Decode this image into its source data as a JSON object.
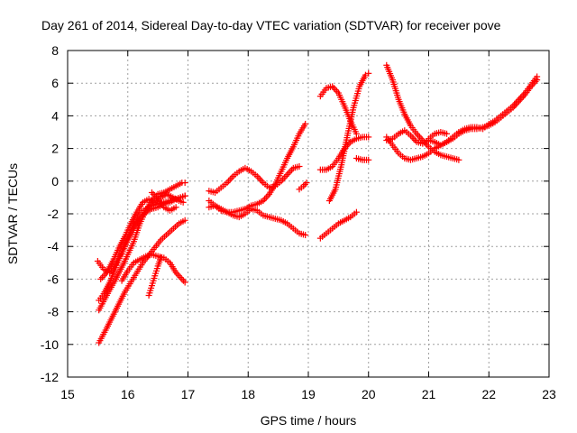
{
  "chart_data": {
    "type": "scatter",
    "title": "Day 261 of 2014, Sidereal Day-to-day VTEC variation (SDTVAR) for receiver pove",
    "xlabel": "GPS time / hours",
    "ylabel": "SDTVAR / TECUs",
    "xlim": [
      15,
      23
    ],
    "ylim": [
      -12,
      8
    ],
    "xticks": [
      "15",
      "16",
      "17",
      "18",
      "19",
      "20",
      "21",
      "22",
      "23"
    ],
    "yticks": [
      "8",
      "6",
      "4",
      "2",
      "0",
      "-2",
      "-4",
      "-6",
      "-8",
      "-10",
      "-12"
    ],
    "grid": true,
    "marker": "+",
    "color": "#ff0000",
    "tracks": [
      {
        "x": [
          15.52,
          15.65,
          15.8,
          15.95,
          16.1,
          16.25,
          16.4,
          16.55,
          16.7,
          16.85,
          16.95
        ],
        "y": [
          -9.9,
          -9.0,
          -7.9,
          -6.8,
          -5.9,
          -5.0,
          -4.3,
          -3.6,
          -3.1,
          -2.6,
          -2.4
        ]
      },
      {
        "x": [
          15.52,
          15.65,
          15.8,
          15.95,
          16.1,
          16.2,
          16.3,
          16.4,
          16.5,
          16.6,
          16.7,
          16.8,
          16.9,
          16.95
        ],
        "y": [
          -7.9,
          -7.0,
          -6.0,
          -4.9,
          -3.7,
          -2.6,
          -1.8,
          -1.2,
          -0.8,
          -0.7,
          -0.5,
          -0.3,
          -0.1,
          -0.1
        ]
      },
      {
        "x": [
          15.52,
          15.6,
          15.7,
          15.8,
          15.9,
          16.0,
          16.1,
          16.2,
          16.3,
          16.4,
          16.5,
          16.6,
          16.7,
          16.8,
          16.95
        ],
        "y": [
          -7.3,
          -6.9,
          -6.2,
          -5.3,
          -4.3,
          -3.4,
          -2.6,
          -2.0,
          -1.7,
          -1.5,
          -1.4,
          -1.3,
          -1.2,
          -1.1,
          -0.9
        ]
      },
      {
        "x": [
          15.5,
          15.6,
          15.7,
          15.8,
          15.9,
          16.0,
          16.1,
          16.2,
          16.3,
          16.4,
          16.5,
          16.6,
          16.7,
          16.8,
          16.95
        ],
        "y": [
          -4.9,
          -5.4,
          -5.6,
          -5.1,
          -4.4,
          -3.6,
          -2.9,
          -2.3,
          -1.9,
          -1.7,
          -1.6,
          -1.4,
          -1.3,
          -1.1,
          -0.9
        ]
      },
      {
        "x": [
          15.55,
          15.65,
          15.75,
          15.85,
          15.95,
          16.05,
          16.15,
          16.25,
          16.35,
          16.45,
          16.55,
          16.65,
          16.75,
          16.85,
          16.92
        ],
        "y": [
          -6.0,
          -5.6,
          -4.9,
          -4.1,
          -3.4,
          -2.6,
          -1.9,
          -1.3,
          -1.1,
          -1.3,
          -1.0,
          -0.8,
          -1.0,
          -1.2,
          -1.3
        ]
      },
      {
        "x": [
          16.4,
          16.5,
          16.6,
          16.7,
          16.8
        ],
        "y": [
          -0.7,
          -1.1,
          -1.6,
          -1.8,
          -1.6
        ]
      },
      {
        "x": [
          15.9,
          16.0,
          16.1,
          16.2,
          16.3,
          16.4,
          16.5,
          16.6,
          16.7,
          16.8,
          16.9,
          16.95
        ],
        "y": [
          -6.1,
          -5.5,
          -5.0,
          -4.8,
          -4.6,
          -4.5,
          -4.6,
          -4.7,
          -5.0,
          -5.6,
          -6.0,
          -6.2
        ]
      },
      {
        "x": [
          16.35,
          16.4,
          16.45,
          16.5,
          16.55
        ],
        "y": [
          -7.0,
          -6.4,
          -5.8,
          -5.2,
          -4.7
        ]
      },
      {
        "x": [
          17.35,
          17.45,
          17.55,
          17.65,
          17.75,
          17.85,
          17.95,
          18.05,
          18.15,
          18.25,
          18.35,
          18.45,
          18.55,
          18.65,
          18.75,
          18.85,
          18.95
        ],
        "y": [
          -1.6,
          -1.5,
          -1.7,
          -1.9,
          -2.1,
          -2.2,
          -2.0,
          -1.7,
          -1.8,
          -2.1,
          -2.2,
          -2.3,
          -2.4,
          -2.6,
          -2.9,
          -3.2,
          -3.3
        ]
      },
      {
        "x": [
          17.35,
          17.45,
          17.55,
          17.65,
          17.75,
          17.85,
          17.95,
          18.05,
          18.15,
          18.25,
          18.35,
          18.45,
          18.55,
          18.65,
          18.75,
          18.85
        ],
        "y": [
          -0.6,
          -0.7,
          -0.4,
          -0.1,
          0.3,
          0.6,
          0.8,
          0.6,
          0.3,
          -0.1,
          -0.4,
          -0.3,
          0.0,
          0.4,
          0.8,
          0.9
        ]
      },
      {
        "x": [
          17.35,
          17.45,
          17.55,
          17.65,
          17.75,
          17.85,
          17.95,
          18.05,
          18.15,
          18.25,
          18.35,
          18.45,
          18.55,
          18.65,
          18.75,
          18.85,
          18.95
        ],
        "y": [
          -1.2,
          -1.5,
          -1.8,
          -1.9,
          -1.9,
          -1.8,
          -1.7,
          -1.5,
          -1.4,
          -1.2,
          -0.8,
          -0.2,
          0.6,
          1.4,
          2.1,
          2.9,
          3.5
        ]
      },
      {
        "x": [
          18.85,
          18.92,
          18.97
        ],
        "y": [
          -0.5,
          -0.3,
          -0.1
        ]
      },
      {
        "x": [
          19.2,
          19.3,
          19.4,
          19.5,
          19.6,
          19.7,
          19.8,
          19.9,
          20.0
        ],
        "y": [
          0.7,
          0.7,
          0.9,
          1.4,
          2.0,
          2.4,
          2.6,
          2.7,
          2.7
        ]
      },
      {
        "x": [
          19.2,
          19.3,
          19.4,
          19.5,
          19.6,
          19.7,
          19.8
        ],
        "y": [
          5.2,
          5.7,
          5.8,
          5.4,
          4.6,
          3.7,
          2.9
        ]
      },
      {
        "x": [
          19.35,
          19.45,
          19.55,
          19.65,
          19.75,
          19.85,
          19.95,
          20.0
        ],
        "y": [
          -1.2,
          -0.5,
          1.0,
          2.8,
          4.5,
          5.8,
          6.5,
          6.6
        ]
      },
      {
        "x": [
          19.2,
          19.3,
          19.4,
          19.5,
          19.6,
          19.7,
          19.8
        ],
        "y": [
          -3.5,
          -3.2,
          -2.9,
          -2.6,
          -2.4,
          -2.2,
          -1.9
        ]
      },
      {
        "x": [
          19.8,
          19.9,
          20.0
        ],
        "y": [
          1.4,
          1.3,
          1.3
        ]
      },
      {
        "x": [
          20.3,
          20.4,
          20.5,
          20.6,
          20.7,
          20.8,
          20.9,
          21.0,
          21.1,
          21.2,
          21.3,
          21.4,
          21.5
        ],
        "y": [
          7.1,
          6.2,
          5.0,
          4.1,
          3.4,
          2.9,
          2.5,
          2.1,
          1.8,
          1.6,
          1.5,
          1.4,
          1.3
        ]
      },
      {
        "x": [
          20.3,
          20.4,
          20.5,
          20.6,
          20.7,
          20.8,
          20.9,
          21.0,
          21.1,
          21.2,
          21.3,
          21.4,
          21.5,
          21.6,
          21.7,
          21.8,
          21.9,
          22.0,
          22.1,
          22.2,
          22.3,
          22.4,
          22.5,
          22.6,
          22.7,
          22.8
        ],
        "y": [
          2.7,
          2.2,
          1.7,
          1.4,
          1.3,
          1.4,
          1.5,
          1.7,
          2.0,
          2.2,
          2.4,
          2.6,
          2.9,
          3.1,
          3.2,
          3.2,
          3.3,
          3.4,
          3.6,
          3.9,
          4.2,
          4.5,
          4.9,
          5.3,
          5.8,
          6.2
        ]
      },
      {
        "x": [
          20.3,
          20.4,
          20.5,
          20.6,
          20.7,
          20.8,
          20.9,
          21.0,
          21.1,
          21.2,
          21.3,
          21.4,
          21.5,
          21.6,
          21.7,
          21.8,
          21.9,
          22.0,
          22.1,
          22.2,
          22.3,
          22.4,
          22.5,
          22.6,
          22.7,
          22.8
        ],
        "y": [
          2.5,
          2.6,
          2.9,
          3.1,
          2.8,
          2.4,
          2.3,
          2.5,
          2.4,
          2.2,
          2.4,
          2.7,
          3.0,
          3.2,
          3.3,
          3.3,
          3.2,
          3.5,
          3.7,
          4.0,
          4.3,
          4.6,
          5.0,
          5.4,
          5.9,
          6.4
        ]
      },
      {
        "x": [
          21.0,
          21.1,
          21.2,
          21.3
        ],
        "y": [
          2.6,
          2.9,
          3.0,
          2.9
        ]
      }
    ]
  }
}
